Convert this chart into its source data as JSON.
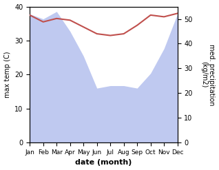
{
  "months": [
    "Jan",
    "Feb",
    "Mar",
    "Apr",
    "May",
    "Jun",
    "Jul",
    "Aug",
    "Sep",
    "Oct",
    "Nov",
    "Dec"
  ],
  "temperature": [
    37.5,
    35.5,
    36.5,
    36.0,
    34.0,
    32.0,
    31.5,
    32.0,
    34.5,
    37.5,
    37.0,
    38.0
  ],
  "precipitation": [
    52,
    50,
    53,
    45,
    35,
    22,
    23,
    23,
    22,
    28,
    38,
    52
  ],
  "temp_color": "#c0504d",
  "precip_fill_color": "#bfc9f0",
  "precip_line_color": "#aab4e8",
  "ylabel_left": "max temp (C)",
  "ylabel_right": "med. precipitation\n(kg/m2)",
  "xlabel": "date (month)",
  "ylim_left": [
    0,
    40
  ],
  "ylim_right": [
    0,
    55
  ],
  "yticks_left": [
    0,
    10,
    20,
    30,
    40
  ],
  "yticks_right": [
    0,
    10,
    20,
    30,
    40,
    50
  ],
  "background_color": "#ffffff"
}
